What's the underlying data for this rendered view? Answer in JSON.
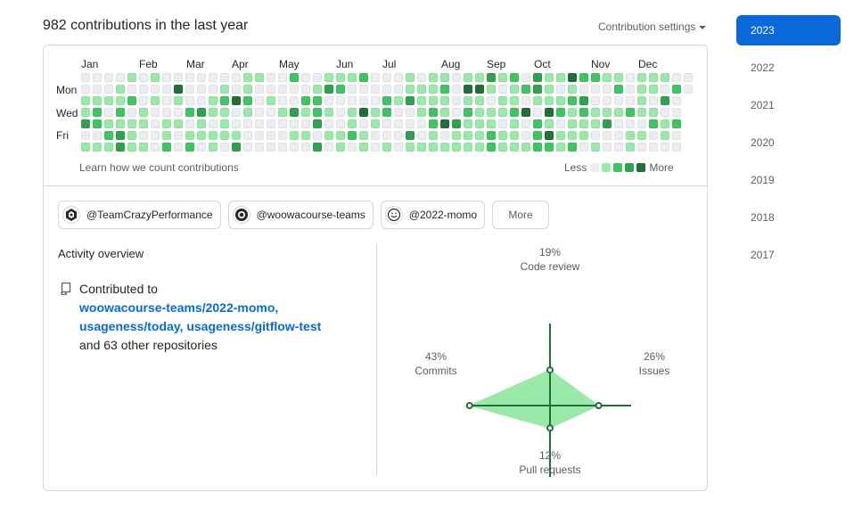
{
  "header": {
    "title": "982 contributions in the last year",
    "settings_label": "Contribution settings"
  },
  "calendar": {
    "months": [
      "Jan",
      "Feb",
      "Mar",
      "Apr",
      "May",
      "Jun",
      "Jul",
      "Aug",
      "Sep",
      "Oct",
      "Nov",
      "Dec"
    ],
    "day_labels": [
      "Mon",
      "Wed",
      "Fri"
    ],
    "learn_link": "Learn how we count contributions",
    "legend_less": "Less",
    "legend_more": "More",
    "colors": [
      "#ebedf0",
      "#9be9a8",
      "#40c463",
      "#30a14e",
      "#216e39"
    ],
    "weeks": 53
  },
  "orgs": [
    {
      "label": "@TeamCrazyPerformance",
      "icon": "team-logo-icon"
    },
    {
      "label": "@woowacourse-teams",
      "icon": "woowa-logo-icon"
    },
    {
      "label": "@2022-momo",
      "icon": "momo-logo-icon"
    }
  ],
  "more_label": "More",
  "activity": {
    "title": "Activity overview",
    "intro": "Contributed to",
    "repos": [
      "woowacourse-teams/2022-momo",
      "usageness/today",
      "usageness/gitflow-test"
    ],
    "sep1": ",",
    "sep2": ", ",
    "sep3": ", ",
    "tail": "and 63 other repositories"
  },
  "radar": {
    "code_review": {
      "pct": "19%",
      "label": "Code review",
      "value": 19
    },
    "issues": {
      "pct": "26%",
      "label": "Issues",
      "value": 26
    },
    "pull_requests": {
      "pct": "12%",
      "label": "Pull requests",
      "value": 12
    },
    "commits": {
      "pct": "43%",
      "label": "Commits",
      "value": 43
    },
    "color": "#216e39",
    "fill": "#9be9a8"
  },
  "years": [
    "2023",
    "2022",
    "2021",
    "2020",
    "2019",
    "2018",
    "2017"
  ],
  "active_year": "2023"
}
